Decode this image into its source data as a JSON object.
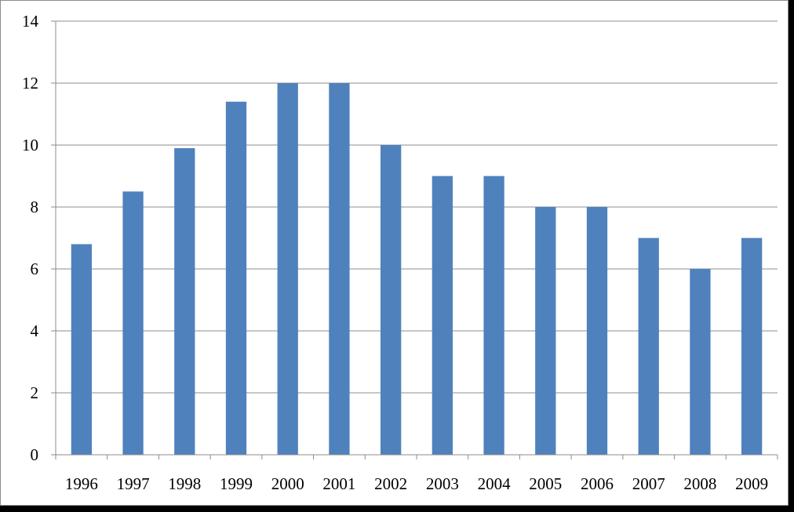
{
  "chart_data": {
    "type": "bar",
    "title": "",
    "xlabel": "",
    "ylabel": "",
    "categories": [
      "1996",
      "1997",
      "1998",
      "1999",
      "2000",
      "2001",
      "2002",
      "2003",
      "2004",
      "2005",
      "2006",
      "2007",
      "2008",
      "2009"
    ],
    "series": [
      {
        "values": [
          6.8,
          8.5,
          9.9,
          11.4,
          12,
          12,
          10,
          9,
          9,
          8,
          8,
          7,
          6,
          7
        ]
      }
    ],
    "ylim": [
      0,
      14
    ],
    "yticks": [
      0,
      2,
      4,
      6,
      8,
      10,
      12,
      14
    ],
    "ytick_labels": [
      "0",
      "2",
      "4",
      "6",
      "8",
      "10",
      "12",
      "14"
    ],
    "grid": true,
    "legend": "none",
    "colors": {
      "bar": "#4f81bd",
      "grid": "#8c8c8c",
      "axis": "#8c8c8c",
      "background": "#ffffff"
    }
  }
}
